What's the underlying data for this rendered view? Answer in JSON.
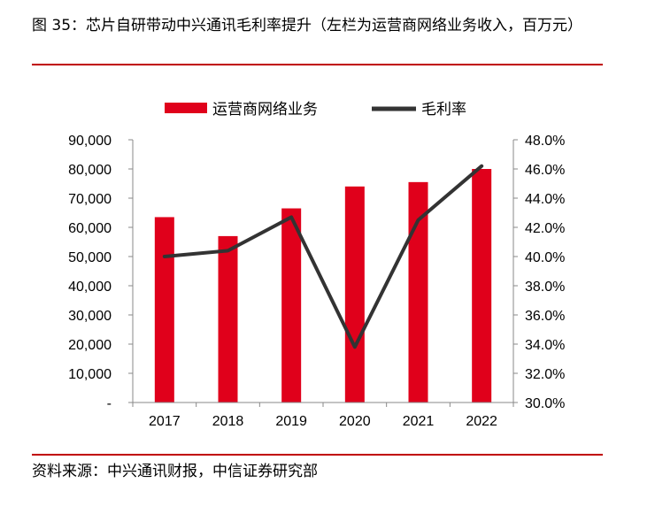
{
  "header": {
    "title": "图 35：芯片自研带动中兴通讯毛利率提升（左栏为运营商网络业务收入，百万元）"
  },
  "footer": {
    "source": "资料来源：中兴通讯财报，中信证券研究部"
  },
  "chart_data": {
    "type": "bar",
    "categories": [
      "2017",
      "2018",
      "2019",
      "2020",
      "2021",
      "2022"
    ],
    "series": [
      {
        "name": "运营商网络业务",
        "type": "bar",
        "axis": "left",
        "color": "#e0001b",
        "values": [
          63500,
          57000,
          66500,
          74000,
          75500,
          80000
        ]
      },
      {
        "name": "毛利率",
        "type": "line",
        "axis": "right",
        "color": "#333333",
        "values": [
          40.0,
          40.4,
          42.7,
          33.8,
          42.5,
          46.2
        ]
      }
    ],
    "y_left": {
      "ylim": [
        0,
        90000
      ],
      "tick_labels": [
        "-",
        "10,000",
        "20,000",
        "30,000",
        "40,000",
        "50,000",
        "60,000",
        "70,000",
        "80,000",
        "90,000"
      ]
    },
    "y_right": {
      "ylim": [
        30,
        48
      ],
      "tick_labels": [
        "30.0%",
        "32.0%",
        "34.0%",
        "36.0%",
        "38.0%",
        "40.0%",
        "42.0%",
        "44.0%",
        "46.0%",
        "48.0%"
      ]
    },
    "legend": {
      "position": "top-center"
    },
    "grid": false
  }
}
